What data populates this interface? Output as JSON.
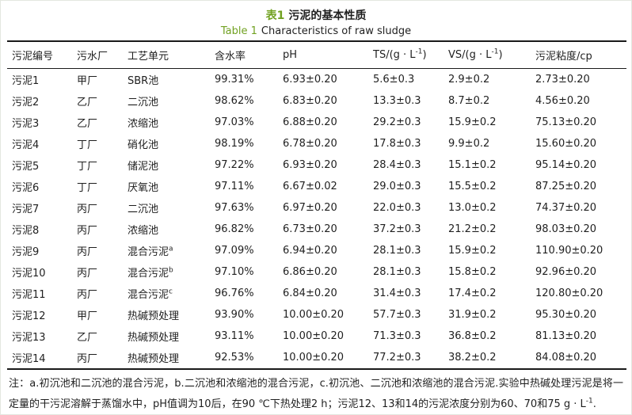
{
  "page": {
    "title_zh_label": "表1",
    "title_zh_text": "污泥的基本性质",
    "title_en_label": "Table 1",
    "title_en_text": "Characteristics of raw sludge",
    "accent_color": "#71a121"
  },
  "table": {
    "columns": [
      "污泥编号",
      "污水厂",
      "工艺单元",
      "含水率",
      "pH",
      "TS/(g · L^{-1})",
      "VS/(g · L^{-1})",
      "污泥粘度/cp"
    ],
    "rows": [
      [
        "污泥1",
        "甲厂",
        "SBR池",
        "99.31%",
        "6.93±0.20",
        "5.6±0.3",
        "2.9±0.2",
        "2.73±0.20"
      ],
      [
        "污泥2",
        "乙厂",
        "二沉池",
        "98.62%",
        "6.83±0.20",
        "13.3±0.3",
        "8.7±0.2",
        "4.56±0.20"
      ],
      [
        "污泥3",
        "乙厂",
        "浓缩池",
        "97.03%",
        "6.88±0.20",
        "29.2±0.3",
        "15.9±0.2",
        "75.13±0.20"
      ],
      [
        "污泥4",
        "丁厂",
        "硝化池",
        "98.19%",
        "6.78±0.20",
        "17.8±0.3",
        "9.9±0.2",
        "15.60±0.20"
      ],
      [
        "污泥5",
        "丁厂",
        "储泥池",
        "97.22%",
        "6.93±0.20",
        "28.4±0.3",
        "15.1±0.2",
        "95.14±0.20"
      ],
      [
        "污泥6",
        "丁厂",
        "厌氧池",
        "97.11%",
        "6.67±0.02",
        "29.0±0.3",
        "15.5±0.2",
        "87.25±0.20"
      ],
      [
        "污泥7",
        "丙厂",
        "二沉池",
        "97.63%",
        "6.97±0.20",
        "22.0±0.3",
        "13.0±0.2",
        "74.37±0.20"
      ],
      [
        "污泥8",
        "丙厂",
        "浓缩池",
        "96.82%",
        "6.73±0.20",
        "37.2±0.3",
        "21.2±0.2",
        "98.03±0.20"
      ],
      [
        "污泥9",
        "丙厂",
        "混合污泥^{a}",
        "97.09%",
        "6.94±0.20",
        "28.1±0.3",
        "15.9±0.2",
        "110.90±0.20"
      ],
      [
        "污泥10",
        "丙厂",
        "混合污泥^{b}",
        "97.10%",
        "6.86±0.20",
        "28.1±0.3",
        "15.8±0.2",
        "92.96±0.20"
      ],
      [
        "污泥11",
        "丙厂",
        "混合污泥^{c}",
        "96.76%",
        "6.84±0.20",
        "31.4±0.3",
        "17.4±0.2",
        "120.80±0.20"
      ],
      [
        "污泥12",
        "甲厂",
        "热碱预处理",
        "93.90%",
        "10.00±0.20",
        "57.7±0.3",
        "31.9±0.2",
        "95.30±0.20"
      ],
      [
        "污泥13",
        "乙厂",
        "热碱预处理",
        "93.11%",
        "10.00±0.20",
        "71.3±0.3",
        "36.8±0.2",
        "81.13±0.20"
      ],
      [
        "污泥14",
        "丙厂",
        "热碱预处理",
        "92.53%",
        "10.00±0.20",
        "77.2±0.3",
        "38.2±0.2",
        "84.08±0.20"
      ]
    ]
  },
  "footnote": {
    "text": "注：a.初沉池和二沉池的混合污泥，b.二沉池和浓缩池的混合污泥，c.初沉池、二沉池和浓缩池的混合污泥.实验中热碱处理污泥是将一定量的干污泥溶解于蒸馏水中，pH值调为10后，在90 ℃下热处理2 h；污泥12、13和14的污泥浓度分别为60、70和75 g · L^{-1}."
  }
}
